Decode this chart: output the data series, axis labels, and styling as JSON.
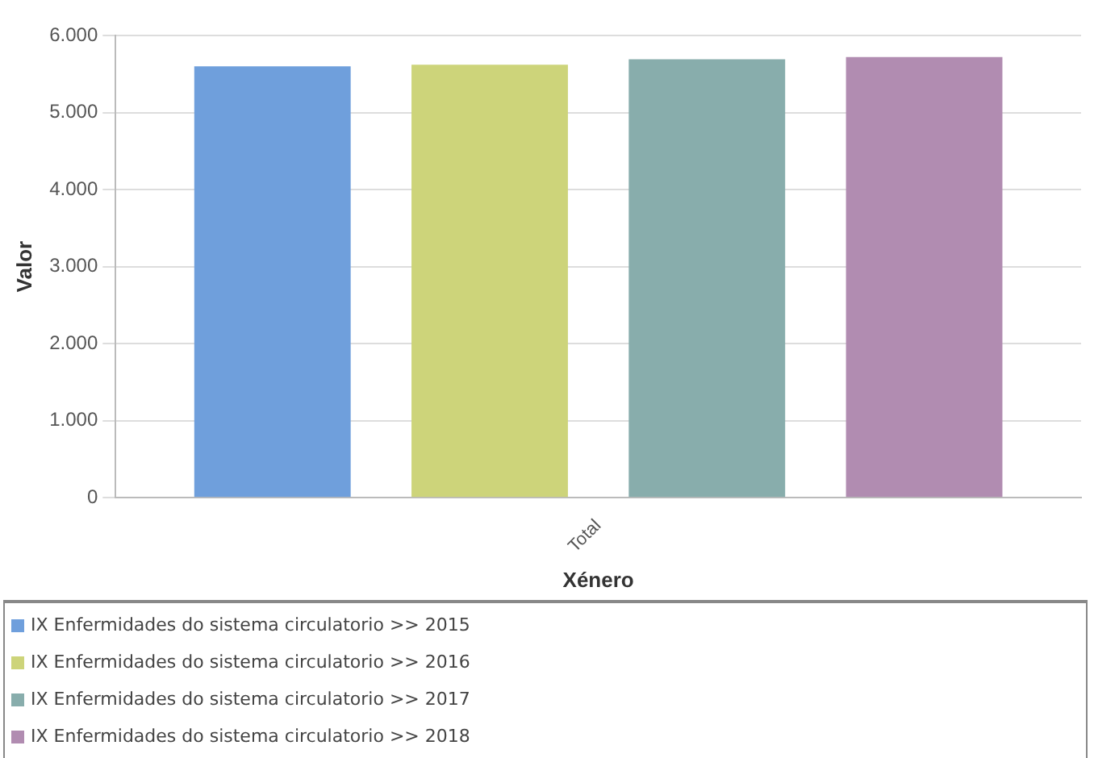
{
  "chart_data": {
    "type": "bar",
    "xlabel": "Xénero",
    "ylabel": "Valor",
    "categories": [
      "Total"
    ],
    "series": [
      {
        "name": "IX Enfermidades do sistema circulatorio >> 2015",
        "color": "#6f9fdc",
        "values": [
          5600
        ]
      },
      {
        "name": "IX Enfermidades do sistema circulatorio >> 2016",
        "color": "#cdd47a",
        "values": [
          5620
        ]
      },
      {
        "name": "IX Enfermidades do sistema circulatorio >> 2017",
        "color": "#88adac",
        "values": [
          5690
        ]
      },
      {
        "name": "IX Enfermidades do sistema circulatorio >> 2018",
        "color": "#b18cb1",
        "values": [
          5720
        ]
      }
    ],
    "ylim": [
      0,
      6000
    ],
    "yticks": [
      0,
      {
        "value": 1000,
        "label": "1.000"
      },
      {
        "value": 2000,
        "label": "2.000"
      },
      {
        "value": 3000,
        "label": "3.000"
      },
      {
        "value": 4000,
        "label": "4.000"
      },
      {
        "value": 5000,
        "label": "5.000"
      },
      {
        "value": 6000,
        "label": "6.000"
      }
    ],
    "grid": "y",
    "legend": "bottom"
  }
}
